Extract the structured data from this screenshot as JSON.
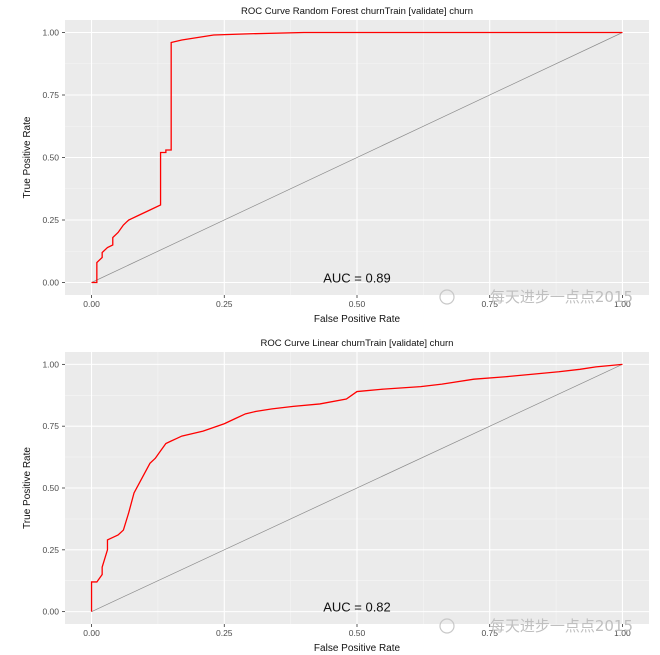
{
  "chart_data": [
    {
      "type": "line",
      "title": "ROC Curve Random Forest churnTrain [validate] churn",
      "xlabel": "False Positive Rate",
      "ylabel": "True Positive Rate",
      "xlim": [
        0,
        1
      ],
      "ylim": [
        0,
        1
      ],
      "x_ticks": [
        "0.00",
        "0.25",
        "0.50",
        "0.75",
        "1.00"
      ],
      "y_ticks": [
        "0.00",
        "0.25",
        "0.50",
        "0.75",
        "1.00"
      ],
      "annotation": "AUC = 0.89",
      "watermark": "每天进步一点点2015",
      "series": [
        {
          "name": "ROC",
          "color": "#ff0000",
          "x": [
            0,
            0.01,
            0.01,
            0.02,
            0.02,
            0.03,
            0.04,
            0.04,
            0.05,
            0.06,
            0.07,
            0.09,
            0.11,
            0.13,
            0.13,
            0.14,
            0.14,
            0.15,
            0.15,
            0.17,
            0.2,
            0.23,
            0.3,
            0.4,
            0.6,
            1.0
          ],
          "y": [
            0,
            0,
            0.08,
            0.1,
            0.12,
            0.14,
            0.15,
            0.18,
            0.2,
            0.23,
            0.25,
            0.27,
            0.29,
            0.31,
            0.52,
            0.52,
            0.53,
            0.53,
            0.96,
            0.97,
            0.98,
            0.99,
            0.995,
            1.0,
            1.0,
            1.0
          ]
        }
      ]
    },
    {
      "type": "line",
      "title": "ROC Curve Linear churnTrain [validate] churn",
      "xlabel": "False Positive Rate",
      "ylabel": "True Positive Rate",
      "xlim": [
        0,
        1
      ],
      "ylim": [
        0,
        1
      ],
      "x_ticks": [
        "0.00",
        "0.25",
        "0.50",
        "0.75",
        "1.00"
      ],
      "y_ticks": [
        "0.00",
        "0.25",
        "0.50",
        "0.75",
        "1.00"
      ],
      "annotation": "AUC = 0.82",
      "watermark": "每天进步一点点2015",
      "series": [
        {
          "name": "ROC",
          "color": "#ff0000",
          "x": [
            0,
            0,
            0.01,
            0.02,
            0.02,
            0.03,
            0.03,
            0.04,
            0.05,
            0.06,
            0.07,
            0.08,
            0.09,
            0.1,
            0.11,
            0.12,
            0.13,
            0.14,
            0.15,
            0.16,
            0.17,
            0.19,
            0.21,
            0.25,
            0.27,
            0.29,
            0.31,
            0.34,
            0.38,
            0.43,
            0.48,
            0.5,
            0.55,
            0.62,
            0.66,
            0.72,
            0.78,
            0.83,
            0.88,
            0.92,
            0.95,
            1.0
          ],
          "y": [
            0,
            0.12,
            0.12,
            0.15,
            0.18,
            0.25,
            0.29,
            0.3,
            0.31,
            0.33,
            0.4,
            0.48,
            0.52,
            0.56,
            0.6,
            0.62,
            0.65,
            0.68,
            0.69,
            0.7,
            0.71,
            0.72,
            0.73,
            0.76,
            0.78,
            0.8,
            0.81,
            0.82,
            0.83,
            0.84,
            0.86,
            0.89,
            0.9,
            0.91,
            0.92,
            0.94,
            0.95,
            0.96,
            0.97,
            0.98,
            0.99,
            1.0
          ]
        }
      ]
    }
  ]
}
